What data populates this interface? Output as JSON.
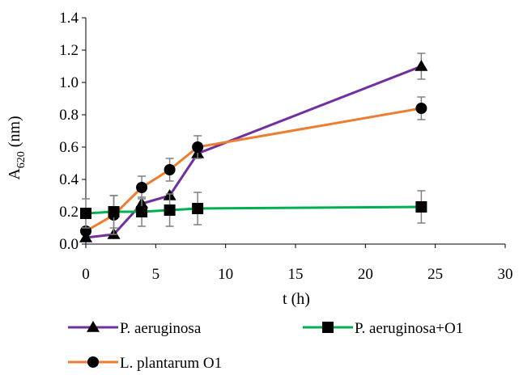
{
  "chart_data": {
    "type": "line",
    "x": [
      0,
      2,
      4,
      6,
      8,
      24
    ],
    "xlabel": "t (h)",
    "ylabel_main": "A",
    "ylabel_sub": "620",
    "ylabel_unit": "(nm)",
    "xlim": [
      0,
      30
    ],
    "ylim": [
      0,
      1.4
    ],
    "xticks": [
      "0",
      "5",
      "10",
      "15",
      "20",
      "25",
      "30"
    ],
    "yticks": [
      "0.0",
      "0.2",
      "0.4",
      "0.6",
      "0.8",
      "1.0",
      "1.2",
      "1.4"
    ],
    "grid": false,
    "legend_position": "bottom",
    "series": [
      {
        "name": "P. aeruginosa",
        "color": "#7030A0",
        "marker": "triangle",
        "values": [
          0.04,
          0.06,
          0.25,
          0.3,
          0.56,
          1.1
        ],
        "errors": [
          0.0,
          0.0,
          0.0,
          0.0,
          0.0,
          0.08
        ]
      },
      {
        "name": "P. aeruginosa+O1",
        "color": "#00B050",
        "marker": "square",
        "values": [
          0.19,
          0.2,
          0.2,
          0.21,
          0.22,
          0.23
        ],
        "errors": [
          0.09,
          0.1,
          0.09,
          0.1,
          0.1,
          0.1
        ]
      },
      {
        "name": "L. plantarum O1",
        "color": "#ED7D31",
        "marker": "circle",
        "values": [
          0.08,
          0.18,
          0.35,
          0.46,
          0.6,
          0.84
        ],
        "errors": [
          0.0,
          0.12,
          0.07,
          0.07,
          0.07,
          0.07
        ]
      }
    ]
  }
}
